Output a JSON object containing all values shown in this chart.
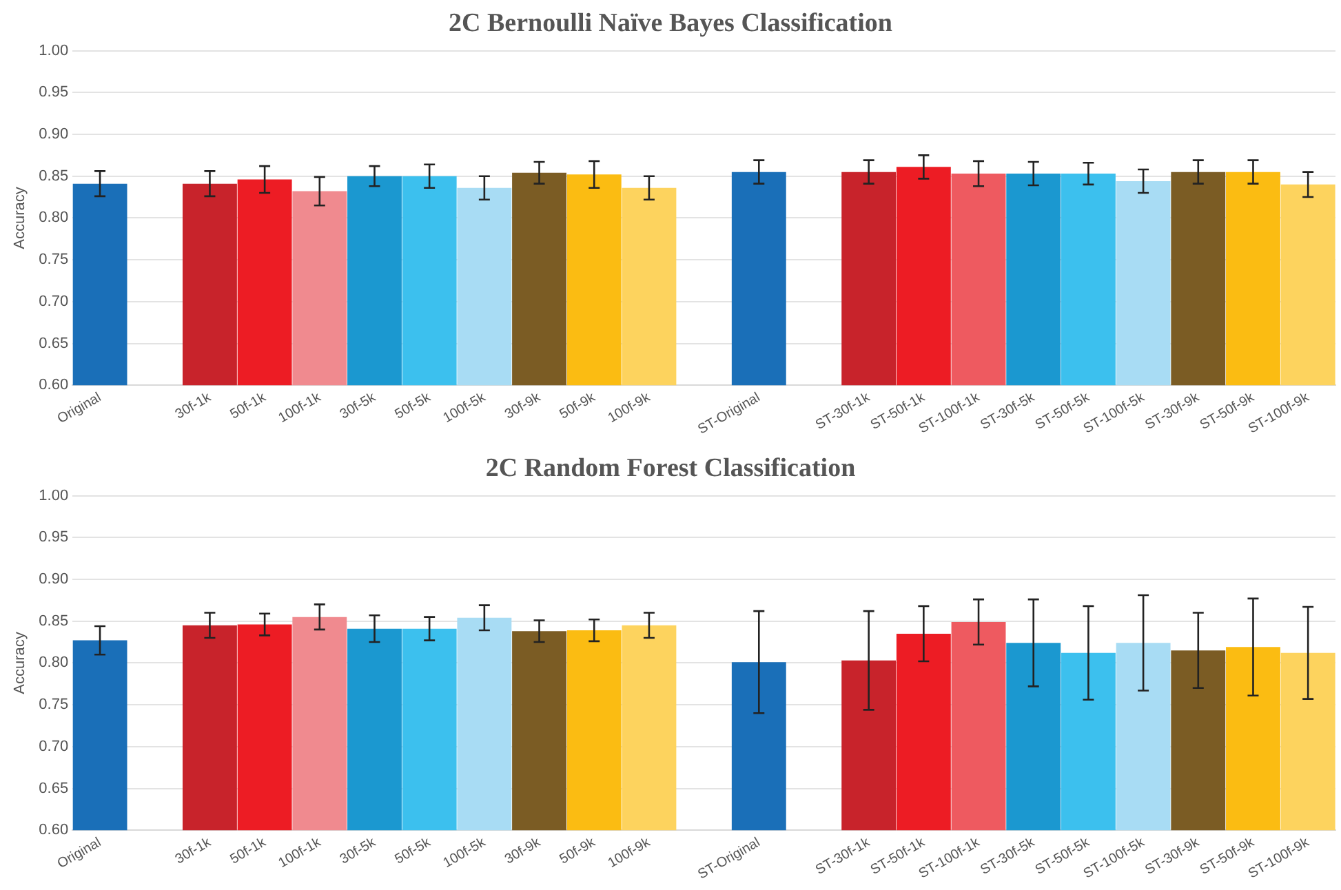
{
  "chart_data": [
    {
      "type": "bar",
      "title": "2C Bernoulli Naïve Bayes Classification",
      "ylabel": "Accuracy",
      "categories": [
        "Original",
        null,
        "30f-1k",
        "50f-1k",
        "100f-1k",
        "30f-5k",
        "50f-5k",
        "100f-5k",
        "30f-9k",
        "50f-9k",
        "100f-9k",
        null,
        "ST-Original",
        null,
        "ST-30f-1k",
        "ST-50f-1k",
        "ST-100f-1k",
        "ST-30f-5k",
        "ST-50f-5k",
        "ST-100f-5k",
        "ST-30f-9k",
        "ST-50f-9k",
        "ST-100f-9k"
      ],
      "values": [
        0.841,
        null,
        0.841,
        0.846,
        0.832,
        0.85,
        0.85,
        0.836,
        0.854,
        0.852,
        0.836,
        null,
        0.855,
        null,
        0.855,
        0.861,
        0.853,
        0.853,
        0.853,
        0.844,
        0.855,
        0.855,
        0.84
      ],
      "errors": [
        0.015,
        null,
        0.015,
        0.016,
        0.017,
        0.012,
        0.014,
        0.014,
        0.013,
        0.016,
        0.014,
        null,
        0.014,
        null,
        0.014,
        0.014,
        0.015,
        0.014,
        0.013,
        0.014,
        0.014,
        0.014,
        0.015
      ],
      "colors": [
        "#1a6fb8",
        "#ffffff",
        "#c8232b",
        "#ed1c24",
        "#f08a8f",
        "#1b98d0",
        "#3cc0ee",
        "#a8dcf4",
        "#7b5c24",
        "#fbbc12",
        "#fdd35e",
        "#ffffff",
        "#1a6fb8",
        "#ffffff",
        "#c8232b",
        "#ed1c24",
        "#ee5a60",
        "#1b98d0",
        "#3cc0ee",
        "#a8dcf4",
        "#7b5c24",
        "#fbbc12",
        "#fdd35e"
      ],
      "ylim": [
        0.6,
        1.0
      ],
      "yticks": [
        {
          "value": 0.6,
          "label": "0.60"
        },
        {
          "value": 0.65,
          "label": "0.65"
        },
        {
          "value": 0.7,
          "label": "0.70"
        },
        {
          "value": 0.75,
          "label": "0.75"
        },
        {
          "value": 0.8,
          "label": "0.80"
        },
        {
          "value": 0.85,
          "label": "0.85"
        },
        {
          "value": 0.9,
          "label": "0.90"
        },
        {
          "value": 0.95,
          "label": "0.95"
        },
        {
          "value": 1.0,
          "label": "1.00"
        }
      ],
      "grid": "y"
    },
    {
      "type": "bar",
      "title": "2C Random Forest Classification",
      "ylabel": "Accuracy",
      "categories": [
        "Original",
        null,
        "30f-1k",
        "50f-1k",
        "100f-1k",
        "30f-5k",
        "50f-5k",
        "100f-5k",
        "30f-9k",
        "50f-9k",
        "100f-9k",
        null,
        "ST-Original",
        null,
        "ST-30f-1k",
        "ST-50f-1k",
        "ST-100f-1k",
        "ST-30f-5k",
        "ST-50f-5k",
        "ST-100f-5k",
        "ST-30f-9k",
        "ST-50f-9k",
        "ST-100f-9k"
      ],
      "values": [
        0.827,
        null,
        0.845,
        0.846,
        0.855,
        0.841,
        0.841,
        0.854,
        0.838,
        0.839,
        0.845,
        null,
        0.801,
        null,
        0.803,
        0.835,
        0.849,
        0.824,
        0.812,
        0.824,
        0.815,
        0.819,
        0.812
      ],
      "errors": [
        0.017,
        null,
        0.015,
        0.013,
        0.015,
        0.016,
        0.014,
        0.015,
        0.013,
        0.013,
        0.015,
        null,
        0.061,
        null,
        0.059,
        0.033,
        0.027,
        0.052,
        0.056,
        0.057,
        0.045,
        0.058,
        0.055
      ],
      "colors": [
        "#1a6fb8",
        "#ffffff",
        "#c8232b",
        "#ed1c24",
        "#f08a8f",
        "#1b98d0",
        "#3cc0ee",
        "#a8dcf4",
        "#7b5c24",
        "#fbbc12",
        "#fdd35e",
        "#ffffff",
        "#1a6fb8",
        "#ffffff",
        "#c8232b",
        "#ed1c24",
        "#ee5a60",
        "#1b98d0",
        "#3cc0ee",
        "#a8dcf4",
        "#7b5c24",
        "#fbbc12",
        "#fdd35e"
      ],
      "ylim": [
        0.6,
        1.0
      ],
      "yticks": [
        {
          "value": 0.6,
          "label": "0.60"
        },
        {
          "value": 0.65,
          "label": "0.65"
        },
        {
          "value": 0.7,
          "label": "0.70"
        },
        {
          "value": 0.75,
          "label": "0.75"
        },
        {
          "value": 0.8,
          "label": "0.80"
        },
        {
          "value": 0.85,
          "label": "0.85"
        },
        {
          "value": 0.9,
          "label": "0.90"
        },
        {
          "value": 0.95,
          "label": "0.95"
        },
        {
          "value": 1.0,
          "label": "1.00"
        }
      ],
      "grid": "y"
    }
  ]
}
